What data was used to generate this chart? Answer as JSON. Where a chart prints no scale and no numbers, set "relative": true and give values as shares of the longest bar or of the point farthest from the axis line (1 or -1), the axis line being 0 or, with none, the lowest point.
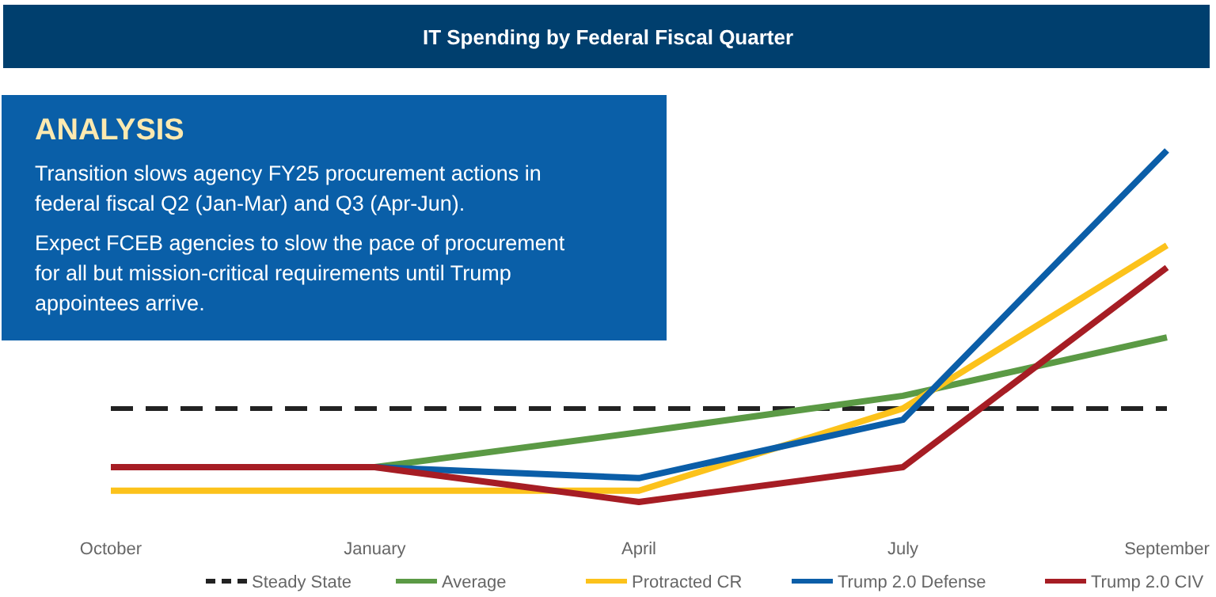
{
  "chart_data": {
    "type": "line",
    "title": "IT Spending by Federal Fiscal Quarter",
    "relative": true,
    "categories": [
      "October",
      "January",
      "April",
      "July",
      "September"
    ],
    "series": [
      {
        "name": "Steady State",
        "color": "#222222",
        "line_style": "dashed",
        "values": [
          0.266,
          0.266,
          0.266,
          0.266,
          0.266
        ]
      },
      {
        "name": "Average",
        "color": "#5b9a45",
        "values": [
          null,
          0.099,
          0.198,
          0.302,
          0.468
        ]
      },
      {
        "name": "Protracted CR",
        "color": "#fcc21b",
        "values": [
          0.032,
          0.032,
          0.032,
          0.266,
          0.73
        ]
      },
      {
        "name": "Trump 2.0 Defense",
        "color": "#0b5ea8",
        "values": [
          null,
          0.099,
          0.068,
          0.234,
          1
        ]
      },
      {
        "name": "Trump 2.0 CIV",
        "color": "#a61d24",
        "values": [
          0.099,
          0.099,
          0,
          0.099,
          0.667
        ]
      }
    ],
    "annotations": [
      "ANALYSIS",
      "Transition slows agency FY25 procurement actions in federal fiscal Q2 (Jan-Mar) and Q3 (Apr-Jun).",
      "Expect FCEB agencies to slow the pace of procurement for all but mission-critical requirements until Trump appointees arrive."
    ],
    "legend": "bottom"
  }
}
